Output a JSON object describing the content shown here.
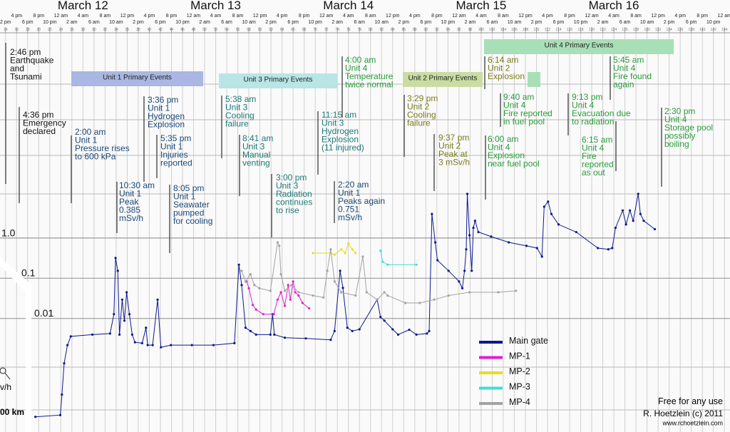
{
  "chart_data": {
    "type": "line",
    "days": [
      "March 12",
      "March 13",
      "March 14",
      "March 15",
      "March 16"
    ],
    "xlim": [
      13,
      145
    ],
    "xticks": [
      14,
      16,
      18,
      20,
      22,
      24,
      26,
      28,
      30,
      32,
      34,
      36,
      38,
      40,
      42,
      44,
      46,
      48,
      50,
      52,
      54,
      56,
      58,
      60,
      62,
      64,
      66,
      68,
      70,
      72,
      74,
      76,
      78,
      80,
      82,
      84,
      86,
      88,
      90,
      92,
      94,
      96,
      98,
      100,
      102,
      104,
      106,
      108,
      110,
      112,
      114,
      116,
      118,
      120,
      122,
      124,
      126,
      128,
      130,
      132,
      134,
      136,
      138,
      140,
      142,
      144
    ],
    "time_labels": [
      "2 pm",
      "4 pm",
      "6 pm",
      "8 pm",
      "10 pm",
      "12 am",
      "2 am",
      "4 am",
      "6 am",
      "8 am",
      "10 am",
      "12 pm",
      "2 pm",
      "4 pm",
      "6 pm",
      "8 pm",
      "10 pm",
      "12 am",
      "2 am",
      "4 am",
      "6 am",
      "8 am",
      "10 am",
      "12 pm",
      "2 pm",
      "4 pm",
      "6 pm",
      "8 pm",
      "10 pm",
      "12 am",
      "2 am",
      "4 am",
      "6 am",
      "8 am",
      "10 am",
      "12 pm",
      "2 pm",
      "4 pm",
      "6 pm",
      "8 pm",
      "10 pm",
      "12 am",
      "2 am",
      "4 am",
      "6 am",
      "8 am",
      "10 am",
      "12 pm",
      "2 pm",
      "4 pm",
      "6 pm",
      "8 pm",
      "10 pm",
      "12 am",
      "2 am",
      "4 am",
      "6 am",
      "8 am",
      "10 am",
      "12 pm",
      "2 pm",
      "4 pm",
      "6 pm",
      "8 pm",
      "10 pm",
      "12 am"
    ],
    "log_scale": true,
    "ylim": [
      1.5e-05,
      12
    ],
    "yticks": [
      {
        "value": 1,
        "label": "1.0"
      },
      0.1,
      0.01
    ],
    "grid": true,
    "event_bars": [
      {
        "label": "Unit 1 Primary Events",
        "color": "#a9b7e2"
      },
      {
        "label": "Unit 3 Primary Events",
        "color": "#b9e5e5"
      },
      {
        "label": "Unit 2 Primary Events",
        "color": "#cbdca2"
      },
      {
        "label": "Unit 4 Primary Events",
        "color": "#a9dfb7"
      }
    ],
    "annotations": [
      {
        "color": "#111111",
        "lines": [
          "2:46 pm",
          "Earthquake",
          "and",
          "Tsunami"
        ]
      },
      {
        "color": "#111111",
        "lines": [
          "4:36 pm",
          "Emergency",
          "declared"
        ]
      },
      {
        "color": "#1b4777",
        "lines": [
          "2:00 am",
          "Unit 1",
          "Pressure rises",
          "to 600 kPa"
        ]
      },
      {
        "color": "#1b4777",
        "lines": [
          "3:36 pm",
          "Unit 1",
          "Hydrogen",
          "Explosion"
        ]
      },
      {
        "color": "#1b4777",
        "lines": [
          "5:35 pm",
          "Unit 1",
          "Injuries",
          "reported"
        ]
      },
      {
        "color": "#1b4777",
        "lines": [
          "10:30 am",
          "Unit 1",
          "Peak",
          "0.385",
          "mSv/h"
        ]
      },
      {
        "color": "#1b4777",
        "lines": [
          "8:05 pm",
          "Unit 1",
          "Seawater",
          "pumped",
          "for cooling"
        ]
      },
      {
        "color": "#1f7878",
        "lines": [
          "5:38 am",
          "Unit 3",
          "Cooling",
          "failure"
        ]
      },
      {
        "color": "#1f7878",
        "lines": [
          "8:41 am",
          "Unit 3",
          "Manual",
          "venting"
        ]
      },
      {
        "color": "#1f7878",
        "lines": [
          "3:00 pm",
          "Unit 3",
          "Radiation",
          "continues",
          "to rise"
        ]
      },
      {
        "color": "#1f7878",
        "lines": [
          "11:15 am",
          "Unit 3",
          "Hydrogen",
          "Explosion",
          "(11 injured)"
        ]
      },
      {
        "color": "#2b9a3b",
        "lines": [
          "4:00 am",
          "Unit 4",
          "Temperature",
          "twice normal"
        ]
      },
      {
        "color": "#1b4777",
        "lines": [
          "2:20 am",
          "Unit 1",
          "Peaks again",
          "0.751",
          "mSv/h"
        ]
      },
      {
        "color": "#7a7a1c",
        "lines": [
          "3:29 pm",
          "Unit 2",
          "Cooling",
          "failure"
        ]
      },
      {
        "color": "#7a7a1c",
        "lines": [
          "9:37 pm",
          "Unit 2",
          "Peak at",
          "3 mSv/h"
        ]
      },
      {
        "color": "#7a7a1c",
        "lines": [
          "6:14 am",
          "Unit 2",
          "Explosion"
        ]
      },
      {
        "color": "#2b9a3b",
        "lines": [
          "9:40 am",
          "Unit 4",
          "Fire reported",
          "in fuel pool"
        ]
      },
      {
        "color": "#2b9a3b",
        "lines": [
          "6:00 am",
          "Unit 4",
          "Explosion",
          "near fuel pool"
        ]
      },
      {
        "color": "#2b9a3b",
        "lines": [
          "5:45 am",
          "Unit 4",
          "Fire found",
          "again"
        ]
      },
      {
        "color": "#2b9a3b",
        "lines": [
          "9:13 pm",
          "Unit 4",
          "Evacuation due",
          "to radiation"
        ]
      },
      {
        "color": "#2b9a3b",
        "lines": [
          "6:15 am",
          "Unit 4",
          "Fire",
          "reported",
          "as out"
        ]
      },
      {
        "color": "#2b9a3b",
        "lines": [
          "2:30 pm",
          "Unit 4",
          "Storage pool",
          "possibly",
          "boiling"
        ]
      }
    ],
    "series": [
      {
        "name": "Main gate",
        "color": "#0c1a8c",
        "x": [
          19.4,
          23.9,
          24.2,
          24.6,
          25.2,
          25.8,
          29.7,
          32.9,
          33.6,
          33.9,
          34.3,
          34.6,
          35.1,
          35.5,
          35.9,
          36.4,
          36.9,
          37.4,
          38.7,
          39.4,
          39.7,
          40.6,
          41.5,
          42.1,
          43.9,
          47.7,
          51.6,
          55.4,
          56.2,
          56.7,
          57.4,
          58.3,
          59.3,
          61.9,
          62.3,
          62.6,
          64.5,
          68.3,
          72.8,
          73.5,
          74.5,
          75.0,
          75.8,
          76.7,
          78.0,
          81.2,
          81.8,
          82.5,
          84.0,
          85.0,
          87.0,
          88.3,
          90.2,
          90.6,
          91.1,
          91.7,
          92.1,
          94.1,
          96.0,
          96.6,
          97.0,
          97.3,
          97.5,
          97.9,
          98.3,
          98.6,
          98.9,
          99.5,
          101.8,
          105.0,
          108.2,
          110.1,
          111.0,
          111.4,
          112.1,
          112.7,
          114.0,
          117.2,
          121.1,
          123.0,
          123.7,
          124.3,
          125.6,
          126.2,
          126.9,
          127.5,
          128.4,
          128.8,
          129.4,
          131.4
        ],
        "values": [
          2.8e-05,
          3.1e-05,
          0.0001,
          0.0006,
          0.0017,
          0.0028,
          0.0031,
          0.0033,
          0.01,
          0.25,
          0.12,
          0.0031,
          0.023,
          0.0069,
          0.035,
          0.01,
          0.0031,
          0.002,
          0.0019,
          0.0046,
          0.0017,
          0.0017,
          0.023,
          0.0015,
          0.0017,
          0.0017,
          0.0017,
          0.0019,
          0.17,
          0.053,
          0.0046,
          0.0038,
          0.0031,
          0.0031,
          0.01,
          0.0031,
          0.0026,
          0.0025,
          0.0023,
          0.0038,
          0.12,
          0.045,
          0.0046,
          0.0038,
          0.0042,
          0.023,
          0.0085,
          0.0069,
          0.0042,
          0.0031,
          0.0041,
          0.0031,
          0.0033,
          0.0038,
          3.1,
          0.61,
          0.22,
          0.12,
          0.065,
          0.044,
          0.12,
          0.41,
          9.8,
          0.92,
          0.12,
          1.4,
          2.1,
          1.1,
          0.85,
          0.61,
          0.5,
          0.44,
          0.27,
          4.7,
          6.3,
          3.1,
          1.7,
          1.1,
          0.44,
          0.41,
          0.44,
          1.4,
          3.8,
          1.7,
          3.8,
          2.1,
          9.8,
          3.1,
          2.1,
          1.3
        ]
      },
      {
        "name": "MP-1",
        "color": "#e21fd2",
        "x": [
          57.6,
          58.0,
          58.7,
          59.3,
          60.6,
          62.5,
          63.2,
          63.8,
          64.5,
          65.1,
          65.5,
          66.0,
          66.4,
          67.0,
          67.7,
          68.9
        ],
        "values": [
          0.065,
          0.044,
          0.017,
          0.013,
          0.01,
          0.01,
          0.023,
          0.035,
          0.016,
          0.053,
          0.023,
          0.065,
          0.035,
          0.029,
          0.019,
          0.014
        ]
      },
      {
        "name": "MP-2",
        "color": "#e6df1e",
        "x": [
          69.6,
          72.8,
          73.5,
          74.7,
          75.4,
          76.0,
          76.7,
          77.3
        ],
        "values": [
          0.33,
          0.33,
          0.3,
          0.41,
          0.33,
          0.57,
          0.41,
          0.33
        ]
      },
      {
        "name": "MP-3",
        "color": "#3fe0d6",
        "x": [
          81.8,
          82.2,
          83.1,
          88.3
        ],
        "values": [
          0.38,
          0.2,
          0.17,
          0.17
        ]
      },
      {
        "name": "MP-4",
        "color": "#a3a3a3",
        "x": [
          56.7,
          57.4,
          58.3,
          59.0,
          59.9,
          61.9,
          63.2,
          63.5,
          63.8,
          64.5,
          65.7,
          67.0,
          69.6,
          71.5,
          72.2,
          72.8,
          73.5,
          74.7,
          77.3,
          78.6,
          79.3,
          81.2,
          82.5,
          83.1,
          86.3,
          88.9,
          91.5,
          94.1,
          97.9,
          103.1,
          106.3
        ],
        "values": [
          0.12,
          0.065,
          0.098,
          0.053,
          0.044,
          0.038,
          0.61,
          0.5,
          0.098,
          0.038,
          0.053,
          0.035,
          0.029,
          0.026,
          0.12,
          0.41,
          0.065,
          0.035,
          0.029,
          0.27,
          0.035,
          0.023,
          0.035,
          0.029,
          0.019,
          0.019,
          0.023,
          0.029,
          0.035,
          0.035,
          0.038
        ]
      }
    ],
    "legend": "bottom-right",
    "credits": [
      "Free for any use",
      "R. Hoetzlein (c) 2011",
      "www.rchoetzlein.com"
    ],
    "inset": [
      "v/h",
      "00 km"
    ]
  }
}
